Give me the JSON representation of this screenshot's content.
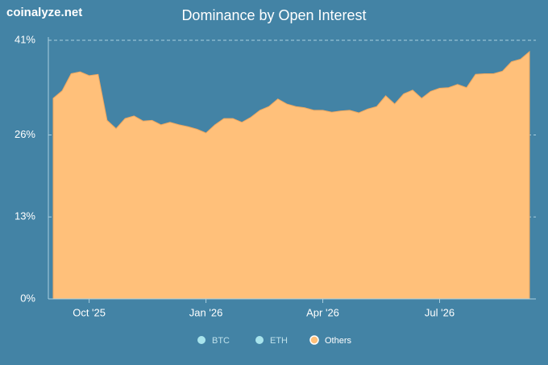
{
  "watermark": "coinalyze.net",
  "chart_data": {
    "type": "area",
    "title": "Dominance by Open Interest",
    "categories": [
      null,
      null,
      null,
      null,
      "Oct '25",
      null,
      null,
      null,
      null,
      null,
      null,
      null,
      null,
      null,
      null,
      null,
      null,
      "Jan '26",
      null,
      null,
      null,
      null,
      null,
      null,
      null,
      null,
      null,
      null,
      null,
      null,
      "Apr '26",
      null,
      null,
      null,
      null,
      null,
      null,
      null,
      null,
      null,
      null,
      null,
      null,
      "Jul '26",
      null,
      null,
      null,
      null,
      null,
      null,
      null,
      null,
      null,
      null
    ],
    "series": [
      {
        "name": "BTC",
        "color": "#a8e4ec",
        "visible": false
      },
      {
        "name": "ETH",
        "color": "#a8e4ec",
        "visible": false
      },
      {
        "name": "Others",
        "color": "#ffc07a",
        "visible": true,
        "values": [
          31.8,
          33,
          35.7,
          36,
          35.4,
          35.6,
          28.3,
          27,
          28.6,
          29,
          28.2,
          28.3,
          27.6,
          28,
          27.6,
          27.3,
          26.9,
          26.3,
          27.6,
          28.6,
          28.6,
          28,
          28.8,
          29.9,
          30.5,
          31.7,
          30.9,
          30.5,
          30.3,
          29.9,
          29.9,
          29.6,
          29.8,
          29.9,
          29.5,
          30.1,
          30.5,
          32.2,
          30.9,
          32.5,
          33.1,
          31.8,
          32.9,
          33.4,
          33.5,
          34,
          33.5,
          35.6,
          35.7,
          35.7,
          36.1,
          37.6,
          38,
          39.2
        ]
      }
    ],
    "ylim": [
      0,
      41
    ],
    "yticks": [
      {
        "value": 0,
        "label": "0%"
      },
      {
        "value": 13,
        "label": "13%"
      },
      {
        "value": 26,
        "label": "26%"
      },
      {
        "value": 41,
        "label": "41%"
      }
    ],
    "grid": true
  }
}
